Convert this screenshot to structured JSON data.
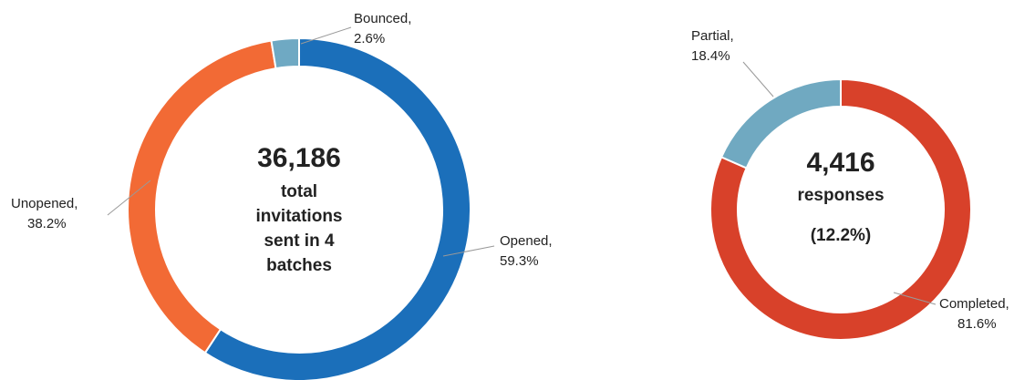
{
  "chart_data": [
    {
      "type": "pie",
      "donut": true,
      "categories": [
        "Opened,",
        "Unopened,",
        "Bounced,"
      ],
      "values": [
        59.3,
        38.2,
        2.6
      ],
      "value_labels": [
        "59.3%",
        "38.2%",
        "2.6%"
      ],
      "colors": [
        "#1b6fba",
        "#f26a35",
        "#6fa9c3"
      ],
      "center_text": [
        "36,186",
        "total",
        "invitations",
        "sent in 4",
        "batches"
      ]
    },
    {
      "type": "pie",
      "donut": true,
      "categories": [
        "Completed,",
        "Partial,"
      ],
      "values": [
        81.6,
        18.4
      ],
      "value_labels": [
        "81.6%",
        "18.4%"
      ],
      "colors": [
        "#d8412a",
        "#70a9c1"
      ],
      "center_text": [
        "4,416",
        "responses",
        "(12.2%)"
      ]
    }
  ]
}
